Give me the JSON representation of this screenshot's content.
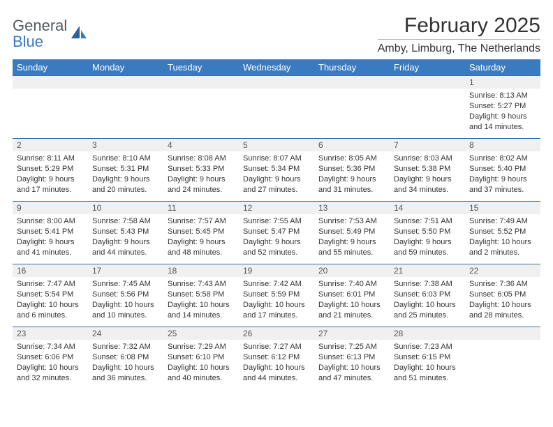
{
  "logo": {
    "text_gray": "General",
    "text_blue": "Blue"
  },
  "title": "February 2025",
  "location": "Amby, Limburg, The Netherlands",
  "colors": {
    "header_bg": "#3a7bc0",
    "header_text": "#ffffff",
    "daynum_bg": "#f0f0f0",
    "week_border": "#3a6fa5",
    "text": "#333333"
  },
  "day_headers": [
    "Sunday",
    "Monday",
    "Tuesday",
    "Wednesday",
    "Thursday",
    "Friday",
    "Saturday"
  ],
  "weeks": [
    [
      {
        "n": "",
        "sunrise": "",
        "sunset": "",
        "daylight": ""
      },
      {
        "n": "",
        "sunrise": "",
        "sunset": "",
        "daylight": ""
      },
      {
        "n": "",
        "sunrise": "",
        "sunset": "",
        "daylight": ""
      },
      {
        "n": "",
        "sunrise": "",
        "sunset": "",
        "daylight": ""
      },
      {
        "n": "",
        "sunrise": "",
        "sunset": "",
        "daylight": ""
      },
      {
        "n": "",
        "sunrise": "",
        "sunset": "",
        "daylight": ""
      },
      {
        "n": "1",
        "sunrise": "Sunrise: 8:13 AM",
        "sunset": "Sunset: 5:27 PM",
        "daylight": "Daylight: 9 hours and 14 minutes."
      }
    ],
    [
      {
        "n": "2",
        "sunrise": "Sunrise: 8:11 AM",
        "sunset": "Sunset: 5:29 PM",
        "daylight": "Daylight: 9 hours and 17 minutes."
      },
      {
        "n": "3",
        "sunrise": "Sunrise: 8:10 AM",
        "sunset": "Sunset: 5:31 PM",
        "daylight": "Daylight: 9 hours and 20 minutes."
      },
      {
        "n": "4",
        "sunrise": "Sunrise: 8:08 AM",
        "sunset": "Sunset: 5:33 PM",
        "daylight": "Daylight: 9 hours and 24 minutes."
      },
      {
        "n": "5",
        "sunrise": "Sunrise: 8:07 AM",
        "sunset": "Sunset: 5:34 PM",
        "daylight": "Daylight: 9 hours and 27 minutes."
      },
      {
        "n": "6",
        "sunrise": "Sunrise: 8:05 AM",
        "sunset": "Sunset: 5:36 PM",
        "daylight": "Daylight: 9 hours and 31 minutes."
      },
      {
        "n": "7",
        "sunrise": "Sunrise: 8:03 AM",
        "sunset": "Sunset: 5:38 PM",
        "daylight": "Daylight: 9 hours and 34 minutes."
      },
      {
        "n": "8",
        "sunrise": "Sunrise: 8:02 AM",
        "sunset": "Sunset: 5:40 PM",
        "daylight": "Daylight: 9 hours and 37 minutes."
      }
    ],
    [
      {
        "n": "9",
        "sunrise": "Sunrise: 8:00 AM",
        "sunset": "Sunset: 5:41 PM",
        "daylight": "Daylight: 9 hours and 41 minutes."
      },
      {
        "n": "10",
        "sunrise": "Sunrise: 7:58 AM",
        "sunset": "Sunset: 5:43 PM",
        "daylight": "Daylight: 9 hours and 44 minutes."
      },
      {
        "n": "11",
        "sunrise": "Sunrise: 7:57 AM",
        "sunset": "Sunset: 5:45 PM",
        "daylight": "Daylight: 9 hours and 48 minutes."
      },
      {
        "n": "12",
        "sunrise": "Sunrise: 7:55 AM",
        "sunset": "Sunset: 5:47 PM",
        "daylight": "Daylight: 9 hours and 52 minutes."
      },
      {
        "n": "13",
        "sunrise": "Sunrise: 7:53 AM",
        "sunset": "Sunset: 5:49 PM",
        "daylight": "Daylight: 9 hours and 55 minutes."
      },
      {
        "n": "14",
        "sunrise": "Sunrise: 7:51 AM",
        "sunset": "Sunset: 5:50 PM",
        "daylight": "Daylight: 9 hours and 59 minutes."
      },
      {
        "n": "15",
        "sunrise": "Sunrise: 7:49 AM",
        "sunset": "Sunset: 5:52 PM",
        "daylight": "Daylight: 10 hours and 2 minutes."
      }
    ],
    [
      {
        "n": "16",
        "sunrise": "Sunrise: 7:47 AM",
        "sunset": "Sunset: 5:54 PM",
        "daylight": "Daylight: 10 hours and 6 minutes."
      },
      {
        "n": "17",
        "sunrise": "Sunrise: 7:45 AM",
        "sunset": "Sunset: 5:56 PM",
        "daylight": "Daylight: 10 hours and 10 minutes."
      },
      {
        "n": "18",
        "sunrise": "Sunrise: 7:43 AM",
        "sunset": "Sunset: 5:58 PM",
        "daylight": "Daylight: 10 hours and 14 minutes."
      },
      {
        "n": "19",
        "sunrise": "Sunrise: 7:42 AM",
        "sunset": "Sunset: 5:59 PM",
        "daylight": "Daylight: 10 hours and 17 minutes."
      },
      {
        "n": "20",
        "sunrise": "Sunrise: 7:40 AM",
        "sunset": "Sunset: 6:01 PM",
        "daylight": "Daylight: 10 hours and 21 minutes."
      },
      {
        "n": "21",
        "sunrise": "Sunrise: 7:38 AM",
        "sunset": "Sunset: 6:03 PM",
        "daylight": "Daylight: 10 hours and 25 minutes."
      },
      {
        "n": "22",
        "sunrise": "Sunrise: 7:36 AM",
        "sunset": "Sunset: 6:05 PM",
        "daylight": "Daylight: 10 hours and 28 minutes."
      }
    ],
    [
      {
        "n": "23",
        "sunrise": "Sunrise: 7:34 AM",
        "sunset": "Sunset: 6:06 PM",
        "daylight": "Daylight: 10 hours and 32 minutes."
      },
      {
        "n": "24",
        "sunrise": "Sunrise: 7:32 AM",
        "sunset": "Sunset: 6:08 PM",
        "daylight": "Daylight: 10 hours and 36 minutes."
      },
      {
        "n": "25",
        "sunrise": "Sunrise: 7:29 AM",
        "sunset": "Sunset: 6:10 PM",
        "daylight": "Daylight: 10 hours and 40 minutes."
      },
      {
        "n": "26",
        "sunrise": "Sunrise: 7:27 AM",
        "sunset": "Sunset: 6:12 PM",
        "daylight": "Daylight: 10 hours and 44 minutes."
      },
      {
        "n": "27",
        "sunrise": "Sunrise: 7:25 AM",
        "sunset": "Sunset: 6:13 PM",
        "daylight": "Daylight: 10 hours and 47 minutes."
      },
      {
        "n": "28",
        "sunrise": "Sunrise: 7:23 AM",
        "sunset": "Sunset: 6:15 PM",
        "daylight": "Daylight: 10 hours and 51 minutes."
      },
      {
        "n": "",
        "sunrise": "",
        "sunset": "",
        "daylight": ""
      }
    ]
  ]
}
